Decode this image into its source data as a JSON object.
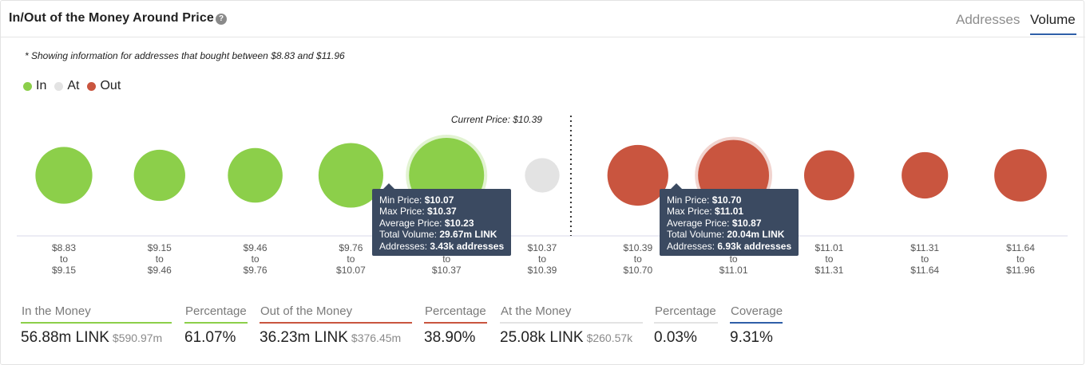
{
  "header": {
    "title": "In/Out of the Money Around Price",
    "help_icon": "question-icon",
    "tabs": [
      "Addresses",
      "Volume"
    ],
    "active_tab": "Volume"
  },
  "note": "* Showing information for addresses that bought between $8.83 and $11.96",
  "legend": [
    {
      "label": "In",
      "color": "#8ccf4a"
    },
    {
      "label": "At",
      "color": "#e3e3e3"
    },
    {
      "label": "Out",
      "color": "#c9553f"
    }
  ],
  "chart_data": {
    "type": "scatter",
    "current_price_label": "Current Price: $10.39",
    "categories": [
      [
        "$8.83",
        "to",
        "$9.15"
      ],
      [
        "$9.15",
        "to",
        "$9.46"
      ],
      [
        "$9.46",
        "to",
        "$9.76"
      ],
      [
        "$9.76",
        "to",
        "$10.07"
      ],
      [
        "$10.07",
        "to",
        "$10.37"
      ],
      [
        "$10.37",
        "to",
        "$10.39"
      ],
      [
        "$10.39",
        "to",
        "$10.70"
      ],
      [
        "$10.70",
        "to",
        "$11.01"
      ],
      [
        "$11.01",
        "to",
        "$11.31"
      ],
      [
        "$11.31",
        "to",
        "$11.64"
      ],
      [
        "$11.64",
        "to",
        "$11.96"
      ]
    ],
    "status": [
      "in",
      "in",
      "in",
      "in",
      "in",
      "at",
      "out",
      "out",
      "out",
      "out",
      "out"
    ],
    "relative_size": [
      27,
      22,
      25,
      35,
      47,
      10,
      31,
      42,
      21,
      18,
      23
    ],
    "colors": {
      "in": "#8ccf4a",
      "at": "#e3e3e3",
      "out": "#c9553f"
    }
  },
  "tooltips": [
    {
      "bucket": 4,
      "rows": [
        {
          "label": "Min Price:",
          "value": "$10.07"
        },
        {
          "label": "Max Price:",
          "value": "$10.37"
        },
        {
          "label": "Average Price:",
          "value": "$10.23"
        },
        {
          "label": "Total Volume:",
          "value": "29.67m LINK"
        },
        {
          "label": "Addresses:",
          "value": "3.43k addresses"
        }
      ]
    },
    {
      "bucket": 7,
      "rows": [
        {
          "label": "Min Price:",
          "value": "$10.70"
        },
        {
          "label": "Max Price:",
          "value": "$11.01"
        },
        {
          "label": "Average Price:",
          "value": "$10.87"
        },
        {
          "label": "Total Volume:",
          "value": "20.04m LINK"
        },
        {
          "label": "Addresses:",
          "value": "6.93k addresses"
        }
      ]
    }
  ],
  "stats": [
    {
      "label": "In the Money",
      "value": "56.88m LINK",
      "sub": "$590.97m",
      "color": "#8ccf4a"
    },
    {
      "label": "Percentage",
      "value": "61.07%",
      "sub": "",
      "color": "#8ccf4a"
    },
    {
      "label": "Out of the Money",
      "value": "36.23m LINK",
      "sub": "$376.45m",
      "color": "#c9553f"
    },
    {
      "label": "Percentage",
      "value": "38.90%",
      "sub": "",
      "color": "#c9553f"
    },
    {
      "label": "At the Money",
      "value": "25.08k LINK",
      "sub": "$260.57k",
      "color": "#e3e3e3"
    },
    {
      "label": "Percentage",
      "value": "0.03%",
      "sub": "",
      "color": "#e3e3e3"
    },
    {
      "label": "Coverage",
      "value": "9.31%",
      "sub": "",
      "color": "#2f5fa8"
    }
  ]
}
